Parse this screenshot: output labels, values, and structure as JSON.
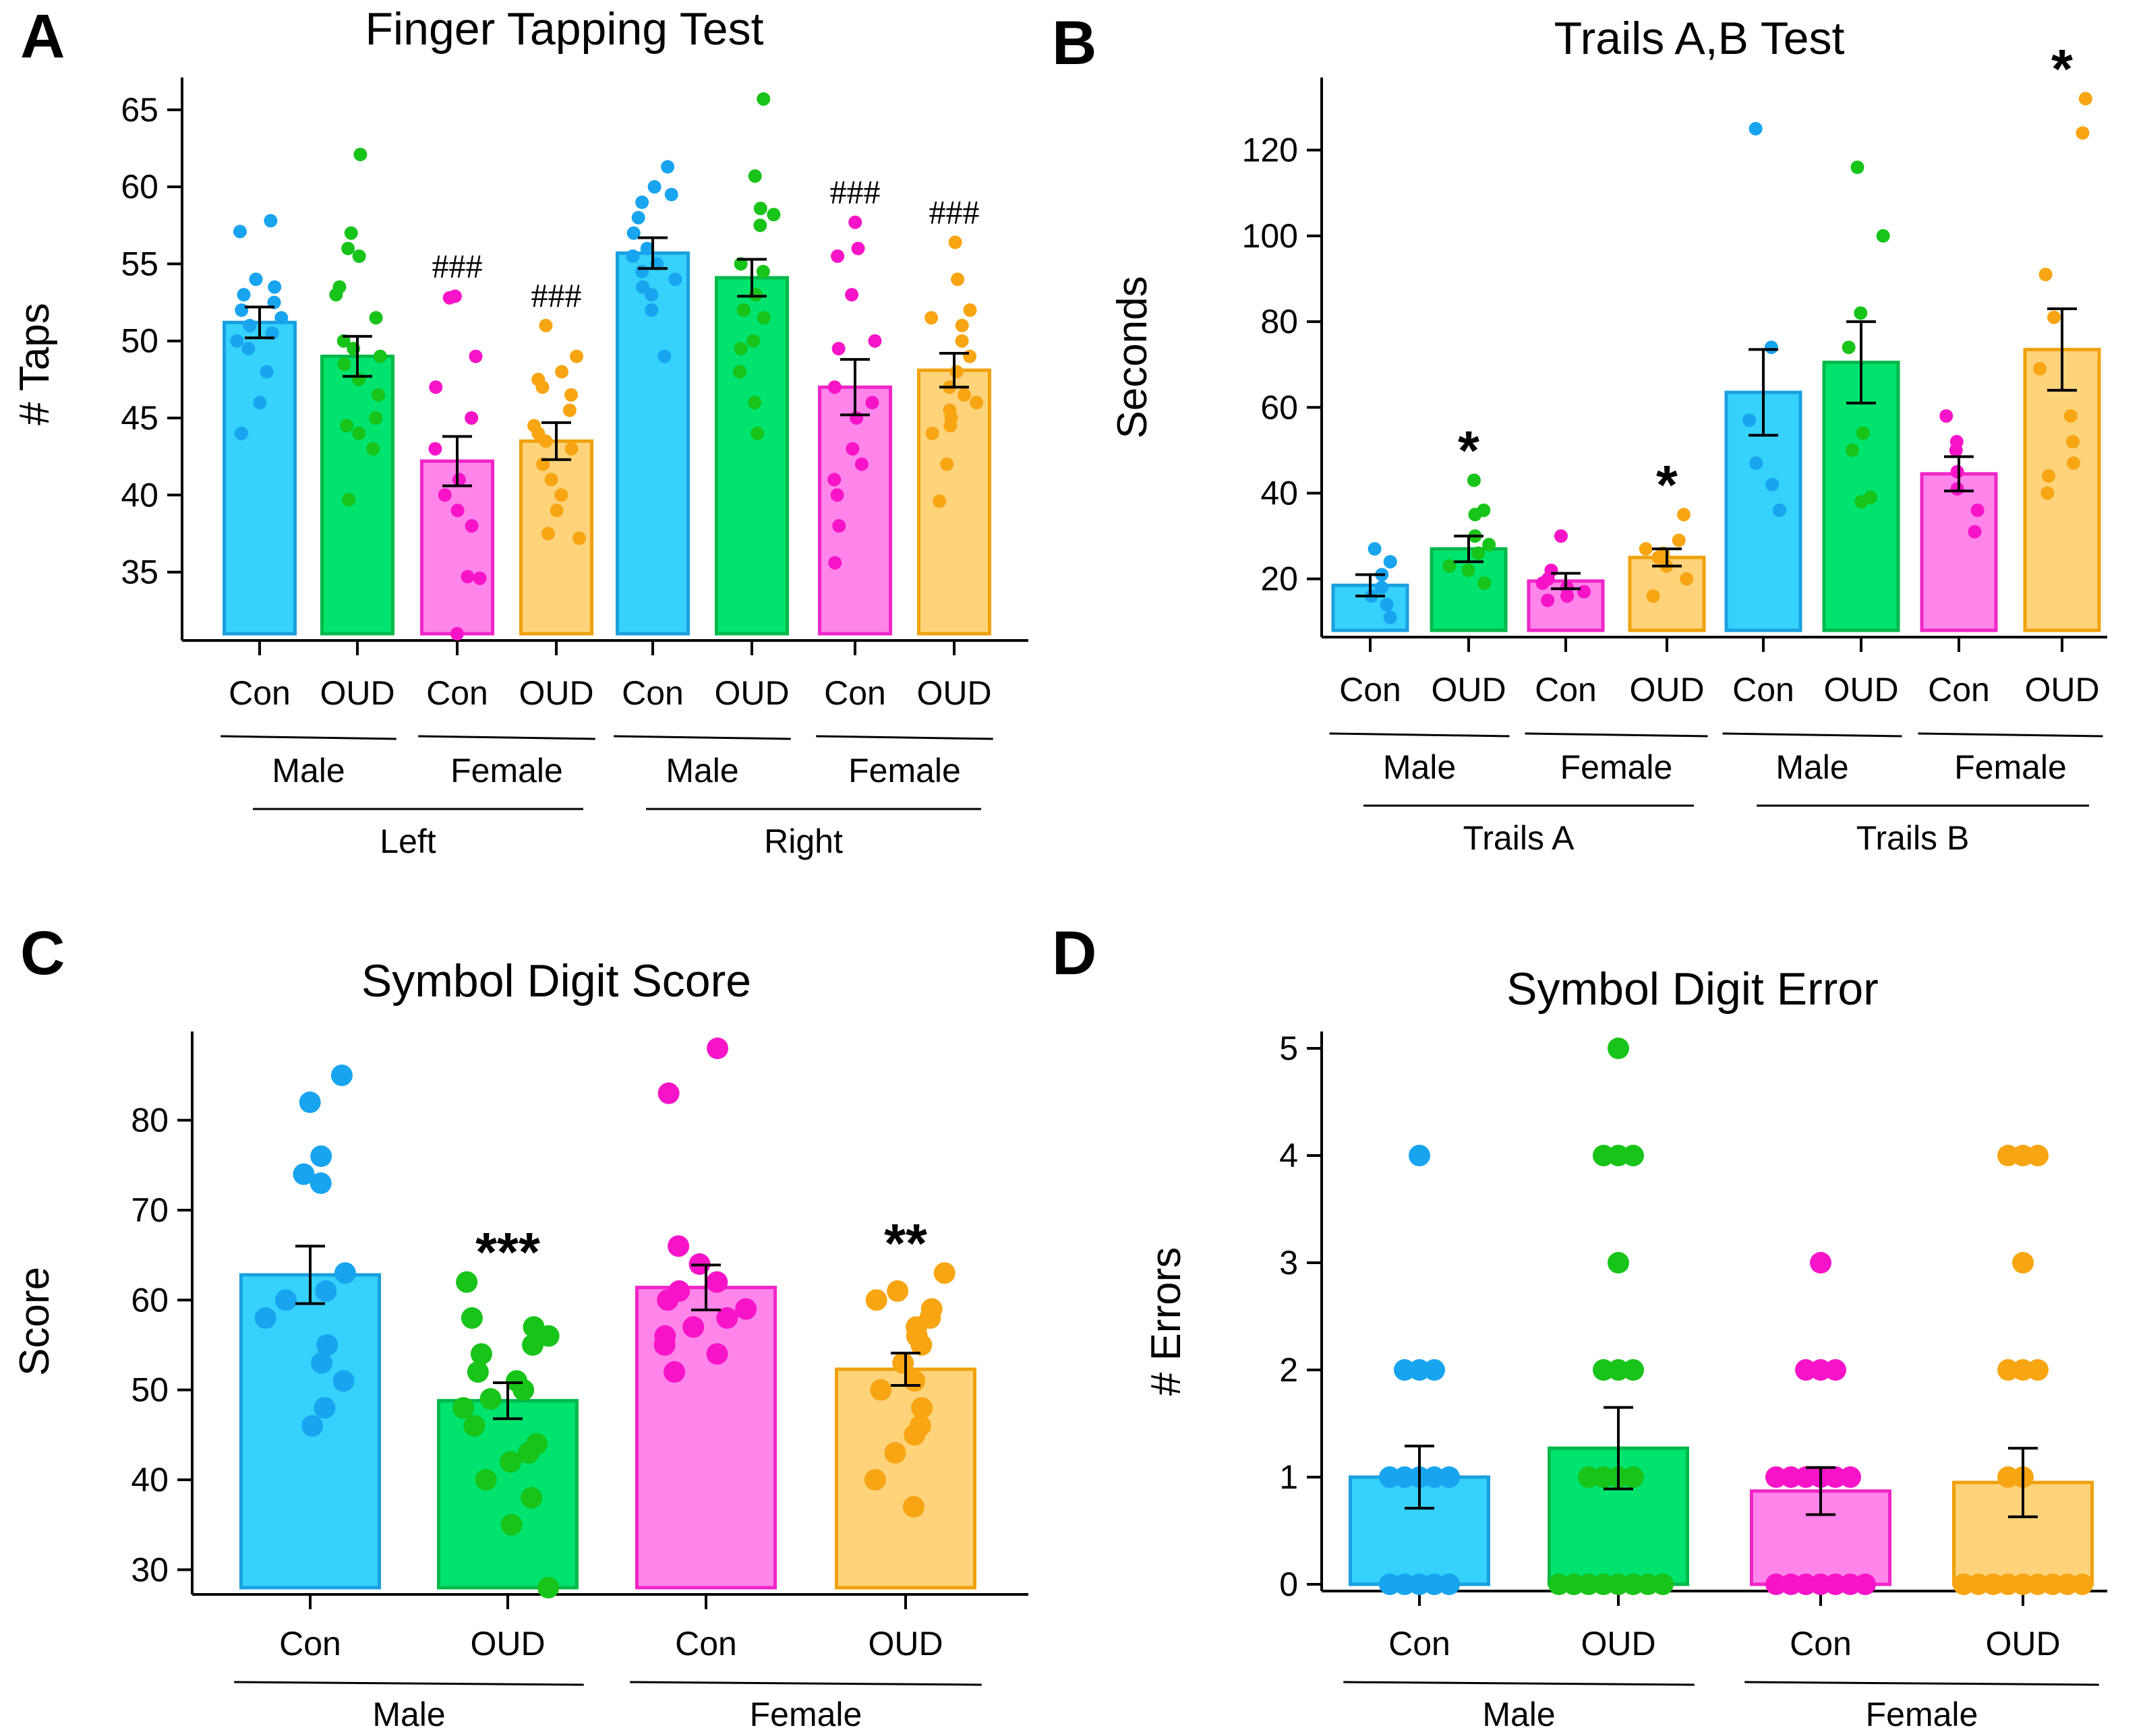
{
  "colors": {
    "con_male_fill": "#36d1fc",
    "con_male_stroke": "#1a9fe0",
    "con_male_dot": "#18a4ef",
    "oud_male_fill": "#00e36e",
    "oud_male_stroke": "#00b84a",
    "oud_male_dot": "#18c31a",
    "con_female_fill": "#ff85ea",
    "con_female_stroke": "#f025c8",
    "con_female_dot": "#f714c8",
    "oud_female_fill": "#ffd37a",
    "oud_female_stroke": "#f0a10c",
    "oud_female_dot": "#f8a513"
  },
  "chart_data": [
    {
      "id": "A",
      "panel_letter": "A",
      "type": "bar",
      "title": "Finger Tapping Test",
      "ylabel": "# Taps",
      "ylim": [
        31,
        66
      ],
      "yticks": [
        35,
        40,
        45,
        50,
        55,
        60,
        65
      ],
      "categories": [
        "Con",
        "OUD",
        "Con",
        "OUD",
        "Con",
        "OUD",
        "Con",
        "OUD"
      ],
      "group_keys": [
        "con_male",
        "oud_male",
        "con_female",
        "oud_female",
        "con_male",
        "oud_male",
        "con_female",
        "oud_female"
      ],
      "sex_labels": [
        "Male",
        "Female",
        "Male",
        "Female"
      ],
      "side_labels": [
        "Left",
        "Right"
      ],
      "means": [
        51.2,
        49.0,
        42.2,
        43.5,
        55.7,
        54.1,
        47.0,
        48.1
      ],
      "errors": [
        1.0,
        1.3,
        1.6,
        1.2,
        1.0,
        1.2,
        1.8,
        1.1
      ],
      "points": [
        [
          57.8,
          57.1,
          54.0,
          53.5,
          53.0,
          52.5,
          52.0,
          51.5,
          51.0,
          50.5,
          50.0,
          49.5,
          48.0,
          46.0,
          44.0
        ],
        [
          62.1,
          57.0,
          56.0,
          55.5,
          53.5,
          53.0,
          51.5,
          50.0,
          49.5,
          49.0,
          48.5,
          47.5,
          46.5,
          45.0,
          44.5,
          44.0,
          43.0,
          39.7
        ],
        [
          52.9,
          52.8,
          49.0,
          47.0,
          45.0,
          43.0,
          41.0,
          40.0,
          39.0,
          38.0,
          34.7,
          34.6,
          31.0
        ],
        [
          51.0,
          49.0,
          48.0,
          47.5,
          47.0,
          46.5,
          45.5,
          44.5,
          44.0,
          43.5,
          43.0,
          42.0,
          41.0,
          40.0,
          39.0,
          37.5,
          37.2
        ],
        [
          61.3,
          60.0,
          59.5,
          59.0,
          58.0,
          57.0,
          56.0,
          55.5,
          55.0,
          54.5,
          54.0,
          53.5,
          53.0,
          52.0,
          49.0
        ],
        [
          65.7,
          60.7,
          58.6,
          58.2,
          57.5,
          55.0,
          54.5,
          53.0,
          52.0,
          51.5,
          50.0,
          49.5,
          48.0,
          46.0,
          44.0
        ],
        [
          57.7,
          56.0,
          55.5,
          53.0,
          50.0,
          49.5,
          47.0,
          46.0,
          45.0,
          43.0,
          42.0,
          41.0,
          40.0,
          38.0,
          35.6
        ],
        [
          56.4,
          54.0,
          52.0,
          51.5,
          51.0,
          50.0,
          49.0,
          48.0,
          47.0,
          46.5,
          46.0,
          45.5,
          45.0,
          44.5,
          44.0,
          42.0,
          39.6
        ]
      ],
      "annotations": [
        "",
        "",
        "###",
        "###",
        "",
        "",
        "###",
        "###"
      ]
    },
    {
      "id": "B",
      "panel_letter": "B",
      "type": "bar",
      "title": "Trails A,B Test",
      "ylabel": "Seconds",
      "ylim": [
        8,
        133
      ],
      "yticks": [
        20,
        40,
        60,
        80,
        100,
        120
      ],
      "categories": [
        "Con",
        "OUD",
        "Con",
        "OUD",
        "Con",
        "OUD",
        "Con",
        "OUD"
      ],
      "group_keys": [
        "con_male",
        "oud_male",
        "con_female",
        "oud_female",
        "con_male",
        "oud_male",
        "con_female",
        "oud_female"
      ],
      "sex_labels": [
        "Male",
        "Female",
        "Male",
        "Female"
      ],
      "side_labels": [
        "Trails A",
        "Trails B"
      ],
      "means": [
        18.5,
        27.0,
        19.5,
        25.0,
        63.5,
        70.5,
        44.5,
        73.5
      ],
      "errors": [
        2.5,
        3.0,
        1.8,
        2.0,
        10.0,
        9.5,
        4.0,
        9.5
      ],
      "points": [
        [
          27.0,
          24.0,
          21.0,
          18.0,
          16.0,
          14.0,
          11.0
        ],
        [
          43.0,
          36.0,
          35.0,
          30.0,
          28.0,
          26.0,
          23.0,
          22.0,
          19.0
        ],
        [
          30.0,
          22.0,
          20.0,
          19.0,
          18.0,
          17.0,
          16.0,
          15.0
        ],
        [
          35.0,
          29.0,
          27.0,
          26.0,
          25.0,
          23.0,
          20.0,
          16.0
        ],
        [
          125.0,
          74.0,
          57.0,
          47.0,
          42.0,
          36.0
        ],
        [
          116.0,
          100.0,
          82.0,
          74.0,
          54.0,
          50.0,
          39.0,
          38.0
        ],
        [
          58.0,
          52.0,
          50.0,
          45.0,
          41.0,
          36.0,
          31.0
        ],
        [
          132.0,
          124.0,
          91.0,
          81.0,
          69.0,
          58.0,
          52.0,
          47.0,
          44.0,
          40.0
        ]
      ],
      "annotations": [
        "",
        "*",
        "",
        "*",
        "",
        "",
        "",
        "*"
      ]
    },
    {
      "id": "C",
      "panel_letter": "C",
      "type": "bar",
      "title": "Symbol Digit Score",
      "ylabel": "Score",
      "ylim": [
        28,
        88
      ],
      "yticks": [
        30,
        40,
        50,
        60,
        70,
        80
      ],
      "categories": [
        "Con",
        "OUD",
        "Con",
        "OUD"
      ],
      "group_keys": [
        "con_male",
        "oud_male",
        "con_female",
        "oud_female"
      ],
      "sex_labels": [
        "Male",
        "Female"
      ],
      "means": [
        62.8,
        48.8,
        61.4,
        52.3
      ],
      "errors": [
        3.2,
        2.0,
        2.5,
        1.8
      ],
      "points": [
        [
          85.0,
          82.0,
          76.0,
          74.0,
          73.0,
          63.0,
          61.0,
          60.0,
          58.0,
          55.0,
          53.0,
          51.0,
          48.0,
          46.0
        ],
        [
          62.0,
          58.0,
          57.0,
          56.0,
          55.0,
          54.0,
          52.0,
          51.0,
          50.0,
          49.0,
          48.0,
          46.0,
          44.0,
          43.0,
          42.0,
          40.0,
          38.0,
          35.0,
          28.0
        ],
        [
          88.0,
          83.0,
          66.0,
          64.0,
          62.0,
          61.0,
          60.0,
          59.0,
          58.0,
          57.0,
          56.0,
          55.0,
          54.0,
          52.0
        ],
        [
          63.0,
          61.0,
          60.0,
          59.0,
          58.0,
          57.0,
          56.0,
          55.0,
          53.0,
          51.0,
          50.0,
          48.0,
          46.0,
          45.0,
          43.0,
          40.0,
          37.0
        ]
      ],
      "annotations": [
        "",
        "***",
        "",
        "**"
      ]
    },
    {
      "id": "D",
      "panel_letter": "D",
      "type": "bar",
      "title": "Symbol Digit Error",
      "ylabel": "# Errors",
      "ylim": [
        0,
        5
      ],
      "yticks": [
        0,
        1,
        2,
        3,
        4,
        5
      ],
      "categories": [
        "Con",
        "OUD",
        "Con",
        "OUD"
      ],
      "group_keys": [
        "con_male",
        "oud_male",
        "con_female",
        "oud_female"
      ],
      "sex_labels": [
        "Male",
        "Female"
      ],
      "means": [
        1.0,
        1.27,
        0.87,
        0.95
      ],
      "errors": [
        0.29,
        0.38,
        0.22,
        0.32
      ],
      "points": [
        [
          4,
          2,
          2,
          2,
          1,
          1,
          1,
          1,
          1,
          0,
          0,
          0,
          0,
          0
        ],
        [
          5,
          4,
          4,
          4,
          3,
          2,
          2,
          2,
          1,
          1,
          1,
          1,
          0,
          0,
          0,
          0,
          0,
          0,
          0,
          0
        ],
        [
          3,
          2,
          2,
          2,
          1,
          1,
          1,
          1,
          1,
          1,
          0,
          0,
          0,
          0,
          0,
          0,
          0
        ],
        [
          4,
          4,
          4,
          3,
          2,
          2,
          2,
          1,
          1,
          0,
          0,
          0,
          0,
          0,
          0,
          0,
          0,
          0
        ]
      ],
      "annotations": [
        "",
        "",
        "",
        ""
      ]
    }
  ]
}
